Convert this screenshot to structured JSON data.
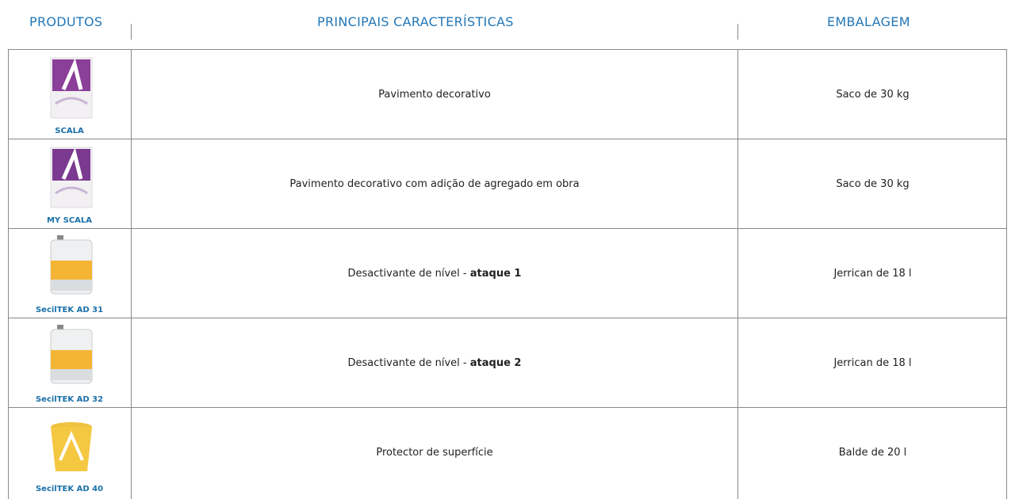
{
  "header": {
    "products": "PRODUTOS",
    "features": "PRINCIPAIS CARACTERÍSTICAS",
    "packaging": "EMBALAGEM"
  },
  "rows": [
    {
      "product": "SCALA",
      "description": "Pavimento decorativo",
      "packaging": "Saco de 30 kg"
    },
    {
      "product": "MY SCALA",
      "description": "Pavimento decorativo com adição de agregado em obra",
      "packaging": "Saco de 30 kg"
    },
    {
      "product": "SecilTEK AD 31",
      "description": "Desactivante de nível - ",
      "description_bold": "ataque 1",
      "packaging": "Jerrican de 18 l"
    },
    {
      "product": "SecilTEK AD 32",
      "description": "Desactivante de nível - ",
      "description_bold": "ataque 2",
      "packaging": "Jerrican de 18 l"
    },
    {
      "product": "SecilTEK AD 40",
      "description": "Protector de superfície",
      "packaging": "Balde de 20 l"
    }
  ]
}
